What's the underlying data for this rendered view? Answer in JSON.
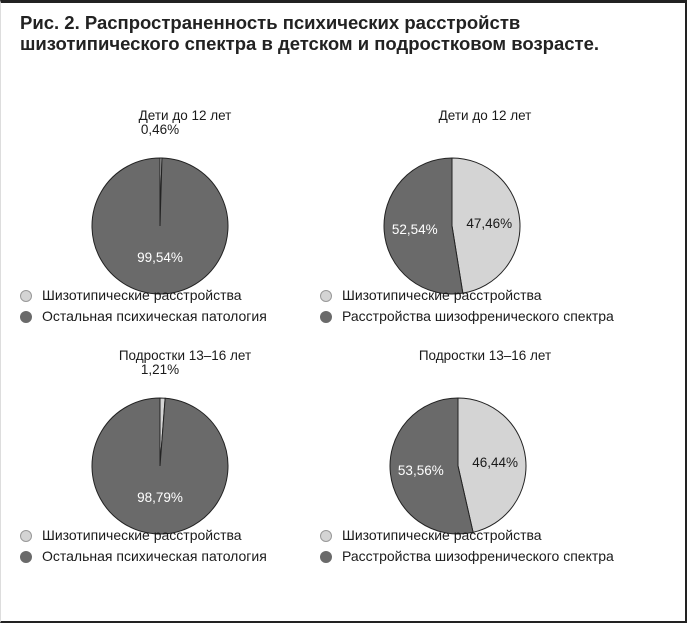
{
  "figure": {
    "title": "Рис. 2. Распространенность психических расстройств шизотипического спектра в детском и подростковом возрасте."
  },
  "colors": {
    "light": "#d4d4d4",
    "dark": "#6a6a6a",
    "outline": "#222222"
  },
  "chart_data": [
    {
      "type": "pie",
      "title": "Дети до 12 лет",
      "slices": [
        {
          "label": "Шизотипические расстройства",
          "value": 0.46,
          "display": "0,46%"
        },
        {
          "label": "Остальная психическая патология",
          "value": 99.54,
          "display": "99,54%"
        }
      ],
      "legend": [
        "Шизотипические расстройства",
        "Остальная психическая патология"
      ]
    },
    {
      "type": "pie",
      "title": "Дети до 12 лет",
      "slices": [
        {
          "label": "Шизотипические расстройства",
          "value": 47.46,
          "display": "47,46%"
        },
        {
          "label": "Расстройства шизофренического спектра",
          "value": 52.54,
          "display": "52,54%"
        }
      ],
      "legend": [
        "Шизотипические расстройства",
        "Расстройства шизофренического спектра"
      ]
    },
    {
      "type": "pie",
      "title": "Подростки 13–16 лет",
      "slices": [
        {
          "label": "Шизотипические расстройства",
          "value": 1.21,
          "display": "1,21%"
        },
        {
          "label": "Остальная психическая патология",
          "value": 98.79,
          "display": "98,79%"
        }
      ],
      "legend": [
        "Шизотипические расстройства",
        "Остальная психическая патология"
      ]
    },
    {
      "type": "pie",
      "title": "Подростки 13–16 лет",
      "slices": [
        {
          "label": "Шизотипические расстройства",
          "value": 46.44,
          "display": "46,44%"
        },
        {
          "label": "Расстройства шизофренического спектра",
          "value": 53.56,
          "display": "53,56%"
        }
      ],
      "legend": [
        "Шизотипические расстройства",
        "Расстройства шизофренического спектра"
      ]
    }
  ]
}
